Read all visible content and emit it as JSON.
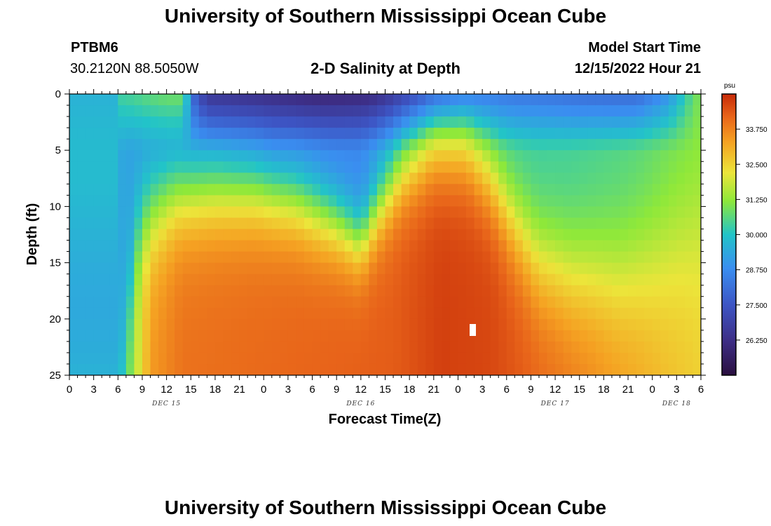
{
  "header": {
    "title": "University of Southern Mississippi Ocean Cube",
    "station": "PTBM6",
    "coords": "30.2120N  88.5050W",
    "subtitle": "2-D Salinity at Depth",
    "model_label": "Model Start Time",
    "model_time": "12/15/2022 Hour 21"
  },
  "footer": {
    "title": "University of Southern Mississippi Ocean Cube"
  },
  "chart_data": {
    "type": "heatmap",
    "title": "2-D Salinity at Depth",
    "xlabel": "Forecast Time(Z)",
    "ylabel": "Depth (ft)",
    "x_ticks": [
      "0",
      "3",
      "6",
      "9",
      "12",
      "15",
      "18",
      "21",
      "0",
      "3",
      "6",
      "9",
      "12",
      "15",
      "18",
      "21",
      "0",
      "3",
      "6",
      "9",
      "12",
      "15",
      "18",
      "21",
      "0",
      "3",
      "6"
    ],
    "x_range_hours": [
      0,
      78
    ],
    "day_labels": [
      {
        "label": "DEC 15",
        "hour": 12
      },
      {
        "label": "DEC 16",
        "hour": 36
      },
      {
        "label": "DEC 17",
        "hour": 60
      },
      {
        "label": "DEC 18",
        "hour": 75
      }
    ],
    "y_ticks": [
      0,
      5,
      10,
      15,
      20,
      25
    ],
    "ylim": [
      25,
      0
    ],
    "colorbar": {
      "units": "psu",
      "min": 25.0,
      "max": 35.0,
      "ticks": [
        "33.750",
        "32.500",
        "31.250",
        "30.000",
        "28.750",
        "27.500",
        "26.250"
      ],
      "tick_values": [
        33.75,
        32.5,
        31.25,
        30.0,
        28.75,
        27.5,
        26.25
      ]
    },
    "salinity_summary": [
      {
        "hour_range": [
          0,
          6
        ],
        "depth_range_ft": [
          0,
          25
        ],
        "salinity_psu": 29.8
      },
      {
        "hour_range": [
          15,
          36
        ],
        "depth_range_ft": [
          0,
          3
        ],
        "salinity_psu": 25.8
      },
      {
        "hour_range": [
          15,
          36
        ],
        "depth_range_ft": [
          12,
          25
        ],
        "salinity_psu": 34.0
      },
      {
        "hour_range": [
          44,
          52
        ],
        "depth_range_ft": [
          15,
          25
        ],
        "salinity_psu": 34.6
      },
      {
        "hour_range": [
          62,
          76
        ],
        "depth_range_ft": [
          0,
          3
        ],
        "salinity_psu": 28.6
      },
      {
        "hour_range": [
          74,
          78
        ],
        "depth_range_ft": [
          18,
          25
        ],
        "salinity_psu": 32.5
      }
    ]
  }
}
